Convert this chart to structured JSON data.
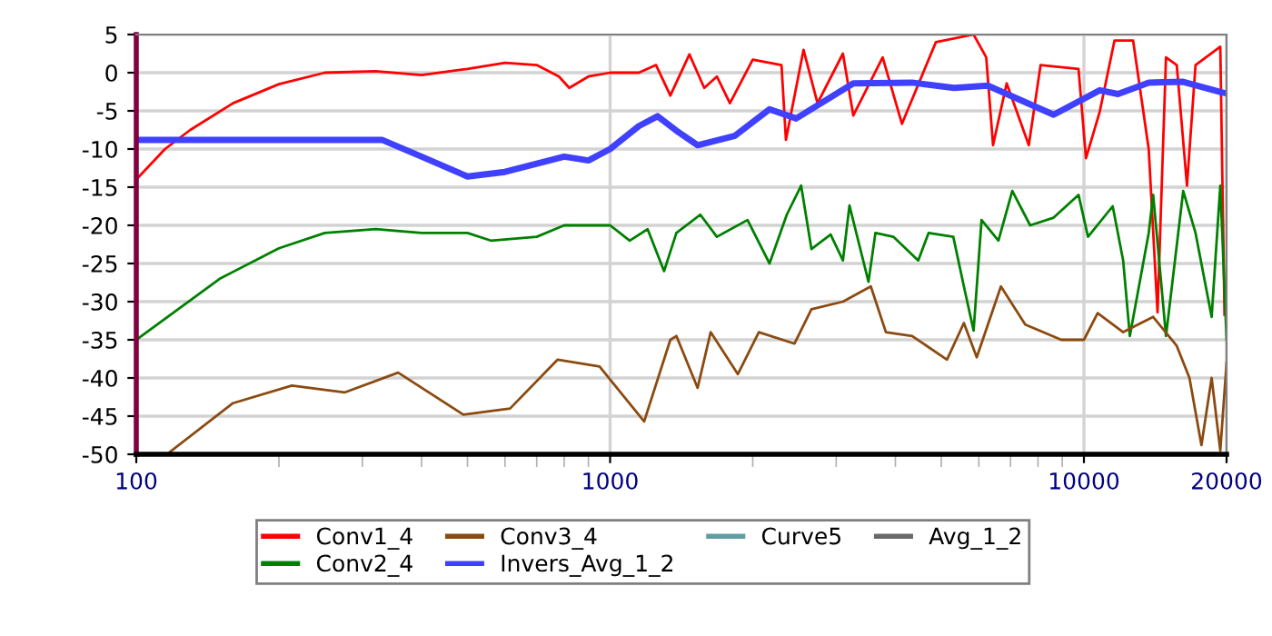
{
  "chart_data": {
    "type": "line",
    "log": "x",
    "xlim": [
      100,
      20000
    ],
    "ylim": [
      -50,
      5
    ],
    "xticks": [
      100,
      {
        "value": 200,
        "label": null
      },
      {
        "value": 300,
        "label": null
      },
      {
        "value": 400,
        "label": null
      },
      {
        "value": 500,
        "label": null
      },
      {
        "value": 600,
        "label": null
      },
      {
        "value": 700,
        "label": null
      },
      {
        "value": 800,
        "label": null
      },
      {
        "value": 900,
        "label": null
      },
      1000,
      {
        "value": 2000,
        "label": null
      },
      {
        "value": 3000,
        "label": null
      },
      {
        "value": 4000,
        "label": null
      },
      {
        "value": 5000,
        "label": null
      },
      {
        "value": 6000,
        "label": null
      },
      {
        "value": 7000,
        "label": null
      },
      {
        "value": 8000,
        "label": null
      },
      {
        "value": 9000,
        "label": null
      },
      10000,
      20000
    ],
    "yticks": [
      5,
      0,
      -5,
      -10,
      -15,
      -20,
      -25,
      -30,
      -35,
      -40,
      -45,
      -50
    ],
    "grid": true,
    "legend": "bottom",
    "marker": "none",
    "line_style": "solid",
    "series": [
      {
        "name": "Conv1_4",
        "color": "#ff0000",
        "x": [
          100,
          115,
          130,
          160,
          200,
          250,
          320,
          400,
          500,
          600,
          700,
          780,
          820,
          900,
          1000,
          1150,
          1250,
          1340,
          1470,
          1580,
          1680,
          1790,
          2000,
          2300,
          2350,
          2560,
          2740,
          3100,
          3260,
          3760,
          4130,
          4870,
          5850,
          6220,
          6430,
          6870,
          7650,
          8100,
          9740,
          10100,
          10800,
          11600,
          12700,
          13700,
          14300,
          14900,
          15700,
          16500,
          17200,
          19400,
          19800
        ],
        "values": [
          -14,
          -10,
          -7.5,
          -4,
          -1.5,
          0,
          0.2,
          -0.3,
          0.5,
          1.3,
          1,
          -0.5,
          -2,
          -0.5,
          0,
          0,
          1,
          -3,
          2.4,
          -2,
          -0.5,
          -4,
          1.7,
          1,
          -8.8,
          3,
          -4,
          2.5,
          -5.6,
          2,
          -6.7,
          4,
          5,
          2,
          -9.5,
          -1.4,
          -9.5,
          1,
          0.5,
          -11.2,
          -5.1,
          4.2,
          4.2,
          -10,
          -31.4,
          2,
          1,
          -14.8,
          1,
          3.4,
          -31.7
        ]
      },
      {
        "name": "Conv2_4",
        "color": "#008000",
        "x": [
          100,
          150,
          200,
          250,
          320,
          400,
          500,
          560,
          700,
          800,
          900,
          1000,
          1100,
          1200,
          1300,
          1380,
          1550,
          1680,
          1950,
          2170,
          2360,
          2530,
          2660,
          2920,
          3100,
          3200,
          3510,
          3630,
          3960,
          4470,
          4700,
          5300,
          5580,
          5850,
          6080,
          6600,
          7060,
          7700,
          8630,
          9740,
          10200,
          11500,
          12100,
          12500,
          13700,
          14000,
          14900,
          16200,
          17200,
          18600,
          19400,
          20000
        ],
        "values": [
          -35,
          -27,
          -23,
          -21,
          -20.5,
          -21,
          -21,
          -22,
          -21.5,
          -20,
          -20,
          -20,
          -22,
          -20.5,
          -26,
          -21,
          -18.6,
          -21.5,
          -19.3,
          -25,
          -18.6,
          -14.8,
          -23.1,
          -21.2,
          -24.6,
          -17.4,
          -27.4,
          -21,
          -21.5,
          -24.6,
          -21,
          -21.5,
          -28,
          -33.8,
          -19.3,
          -22,
          -15.5,
          -20,
          -19,
          -16,
          -21.5,
          -17.5,
          -24.6,
          -34.5,
          -21,
          -16,
          -34.5,
          -15.5,
          -21,
          -32,
          -14.8,
          -35
        ]
      },
      {
        "name": "Conv3_4",
        "color": "#8b4a10",
        "x": [
          116,
          160,
          213,
          275,
          357,
          490,
          615,
          775,
          950,
          1180,
          1340,
          1380,
          1530,
          1630,
          1860,
          2060,
          2450,
          2660,
          3100,
          3550,
          3820,
          4340,
          5140,
          5580,
          5940,
          6680,
          7520,
          8960,
          10000,
          10690,
          12100,
          14000,
          15700,
          16700,
          17700,
          18600,
          19400,
          20000
        ],
        "values": [
          -50,
          -43.3,
          -41,
          -41.9,
          -39.3,
          -44.8,
          -44,
          -37.6,
          -38.5,
          -45.7,
          -35,
          -34.5,
          -41.3,
          -34,
          -39.5,
          -34,
          -35.5,
          -31,
          -30,
          -28,
          -34,
          -34.5,
          -37.6,
          -32.8,
          -37.3,
          -28,
          -33,
          -35,
          -35,
          -31.5,
          -34,
          -32,
          -35.8,
          -40,
          -48.8,
          -40,
          -49.5,
          -38
        ]
      },
      {
        "name": "Invers_Avg_1_2",
        "color": "#4040ff",
        "x": [
          100,
          330,
          400,
          500,
          600,
          800,
          900,
          1000,
          1150,
          1260,
          1380,
          1530,
          1830,
          2170,
          2470,
          3260,
          4340,
          5320,
          6270,
          8630,
          10800,
          11800,
          13700,
          16200,
          19600,
          20000
        ],
        "values": [
          -8.8,
          -8.8,
          -11,
          -13.6,
          -13,
          -11,
          -11.5,
          -10,
          -7,
          -5.7,
          -7.6,
          -9.5,
          -8.3,
          -4.8,
          -6,
          -1.4,
          -1.3,
          -2,
          -1.7,
          -5.5,
          -2.3,
          -2.8,
          -1.3,
          -1.2,
          -2.6,
          -2.7
        ]
      },
      {
        "name": "Curve5",
        "color": "#5f9ea0"
      },
      {
        "name": "Avg_1_2",
        "color": "#696969"
      }
    ]
  }
}
